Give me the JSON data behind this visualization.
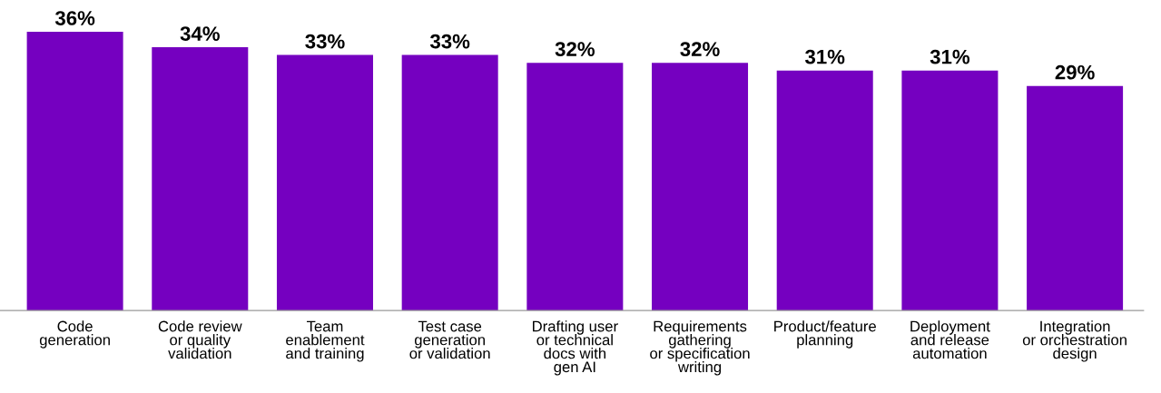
{
  "chart_data": {
    "type": "bar",
    "categories": [
      "Code\ngeneration",
      "Code review\nor quality\nvalidation",
      "Team\nenablement\nand training",
      "Test case\ngeneration\nor validation",
      "Drafting user\nor technical\ndocs with\ngen AI",
      "Requirements\ngathering\nor specification\nwriting",
      "Product/feature\nplanning",
      "Deployment\nand release\nautomation",
      "Integration\nor orchestration\ndesign"
    ],
    "values": [
      36,
      34,
      33,
      33,
      32,
      32,
      31,
      31,
      29
    ],
    "value_labels": [
      "36%",
      "34%",
      "33%",
      "33%",
      "32%",
      "32%",
      "31%",
      "31%",
      "29%"
    ],
    "color": "#7500c0",
    "grid": false,
    "legend": false
  }
}
